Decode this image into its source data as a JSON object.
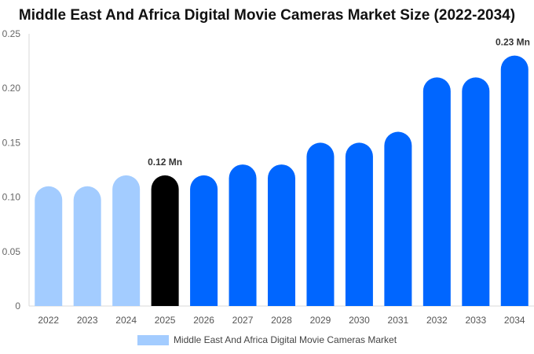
{
  "chart_data": {
    "type": "bar",
    "title": "Middle East And Africa Digital Movie Cameras Market Size (2022-2034)",
    "categories": [
      "2022",
      "2023",
      "2024",
      "2025",
      "2026",
      "2027",
      "2028",
      "2029",
      "2030",
      "2031",
      "2032",
      "2033",
      "2034"
    ],
    "series": [
      {
        "name": "Middle East And Africa Digital Movie Cameras Market",
        "values": [
          0.11,
          0.11,
          0.12,
          0.12,
          0.12,
          0.13,
          0.13,
          0.15,
          0.15,
          0.16,
          0.21,
          0.21,
          0.23
        ]
      }
    ],
    "ylim": [
      0,
      0.25
    ],
    "yticks": [
      "0",
      "0.05",
      "0.10",
      "0.15",
      "0.20",
      "0.25"
    ],
    "ytick_values": [
      0,
      0.05,
      0.1,
      0.15,
      0.2,
      0.25
    ],
    "annotations": [
      {
        "category": "2025",
        "text": "0.12 Mn"
      },
      {
        "category": "2034",
        "text": "0.23 Mn"
      }
    ],
    "colors": {
      "historic": "#a3ccff",
      "current": "#000000",
      "forecast": "#0066ff"
    },
    "bar_color_groups": [
      "historic",
      "historic",
      "historic",
      "current",
      "forecast",
      "forecast",
      "forecast",
      "forecast",
      "forecast",
      "forecast",
      "forecast",
      "forecast",
      "forecast"
    ],
    "legend_position": "bottom",
    "grid": false
  }
}
